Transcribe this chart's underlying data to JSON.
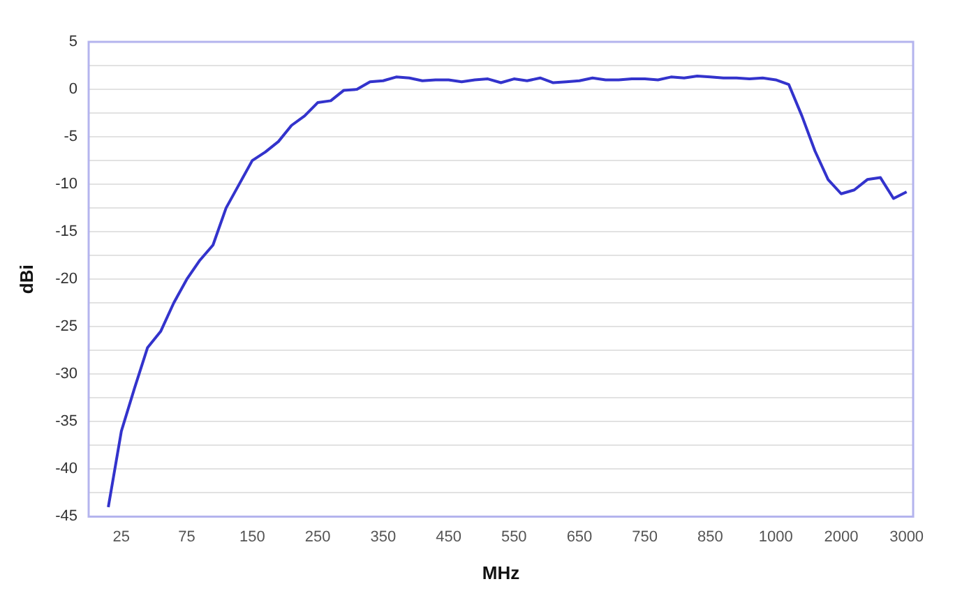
{
  "chart_data": {
    "type": "line",
    "xlabel": "MHz",
    "ylabel": "dBi",
    "categories": [
      null,
      null,
      "25",
      null,
      null,
      null,
      null,
      "75",
      null,
      null,
      null,
      null,
      "150",
      null,
      null,
      null,
      null,
      "250",
      null,
      null,
      null,
      null,
      "350",
      null,
      null,
      null,
      null,
      "450",
      null,
      null,
      null,
      null,
      "550",
      null,
      null,
      null,
      null,
      "650",
      null,
      null,
      null,
      null,
      "750",
      null,
      null,
      null,
      null,
      "850",
      null,
      null,
      null,
      null,
      "1000",
      null,
      null,
      null,
      null,
      "2000",
      null,
      null,
      null,
      null,
      "3000"
    ],
    "series": [
      {
        "color": "#3333cc",
        "values": [
          null,
          -44,
          -36,
          -31.5,
          -27.2,
          -25.5,
          -22.5,
          -20,
          -18,
          -16.4,
          -12.5,
          -10,
          -7.5,
          -6.6,
          -5.5,
          -3.8,
          -2.8,
          -1.4,
          -1.2,
          -0.1,
          0,
          0.8,
          0.9,
          1.3,
          1.2,
          0.9,
          1.0,
          1.0,
          0.8,
          1.0,
          1.1,
          0.7,
          1.1,
          0.9,
          1.2,
          0.7,
          0.8,
          0.9,
          1.2,
          1.0,
          1.0,
          1.1,
          1.1,
          1.0,
          1.3,
          1.2,
          1.4,
          1.3,
          1.2,
          1.2,
          1.1,
          1.2,
          1.0,
          0.5,
          -2.8,
          -6.5,
          -9.5,
          -11,
          -10.6,
          -9.5,
          -9.3,
          -11.5,
          -10.8
        ]
      }
    ],
    "ylim": [
      -45,
      5
    ],
    "yticks": [
      -45,
      {
        "value": -42.5,
        "label": null
      },
      -40,
      {
        "value": -37.5,
        "label": null
      },
      -35,
      {
        "value": -32.5,
        "label": null
      },
      -30,
      {
        "value": -27.5,
        "label": null
      },
      -25,
      {
        "value": -22.5,
        "label": null
      },
      -20,
      {
        "value": -17.5,
        "label": null
      },
      -15,
      {
        "value": -12.5,
        "label": null
      },
      -10,
      {
        "value": -7.5,
        "label": null
      },
      -5,
      {
        "value": -2.5,
        "label": null
      },
      0,
      {
        "value": 2.5,
        "label": null
      },
      5
    ],
    "grid": "y",
    "legend": false,
    "marker": "none",
    "line_style": "solid"
  }
}
